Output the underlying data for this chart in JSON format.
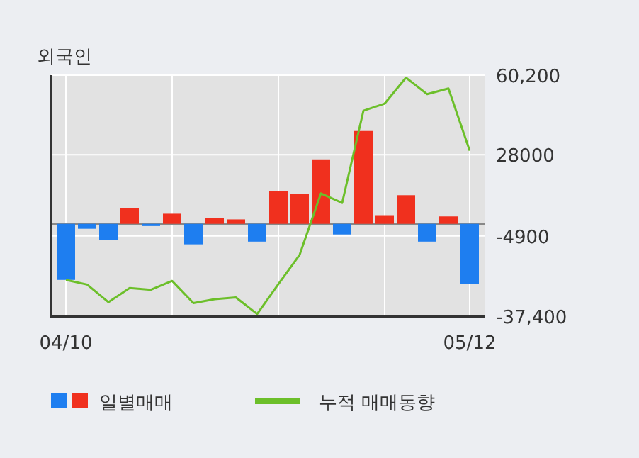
{
  "chart_data": {
    "type": "bar",
    "title": "외국인",
    "categories": [
      "04/10",
      null,
      null,
      null,
      null,
      null,
      null,
      null,
      null,
      null,
      null,
      null,
      null,
      null,
      null,
      null,
      null,
      null,
      null,
      "05/12"
    ],
    "series": [
      {
        "name": "일별매매",
        "colors": [
          "#1e7ef0",
          "#1e7ef0",
          "#1e7ef0",
          "#f0301e",
          "#1e7ef0",
          "#f0301e",
          "#1e7ef0",
          "#f0301e",
          "#f0301e",
          "#1e7ef0",
          "#f0301e",
          "#f0301e",
          "#f0301e",
          "#1e7ef0",
          "#f0301e",
          "#f0301e",
          "#f0301e",
          "#1e7ef0",
          "#f0301e",
          "#1e7ef0"
        ],
        "values": [
          -22700,
          -2000,
          -6600,
          6400,
          -900,
          4100,
          -8300,
          2400,
          1800,
          -7200,
          13300,
          12200,
          26100,
          -4300,
          37600,
          3500,
          11600,
          -7200,
          3000,
          -24400
        ]
      },
      {
        "name": "누적 매매동향",
        "type": "line",
        "color": "#6cbf2a",
        "values": [
          -22700,
          -24600,
          -31700,
          -26000,
          -26700,
          -23100,
          -32100,
          -30500,
          -29800,
          -36500,
          -24400,
          -12500,
          12300,
          8500,
          45800,
          48700,
          59200,
          52500,
          54800,
          29600
        ]
      }
    ],
    "ylim": [
      -37400,
      60200
    ],
    "yticks": [
      {
        "value": 60200,
        "label": "60,200"
      },
      28000,
      {
        "value": -4900,
        "label": "-4900"
      },
      {
        "value": -37400,
        "label": "-37,400"
      }
    ],
    "ref_lines": [
      {
        "axis": "y",
        "value": 0,
        "color": "#888888"
      }
    ],
    "grid": true,
    "legend": "bottom",
    "marker": "none",
    "line_style": "solid"
  }
}
